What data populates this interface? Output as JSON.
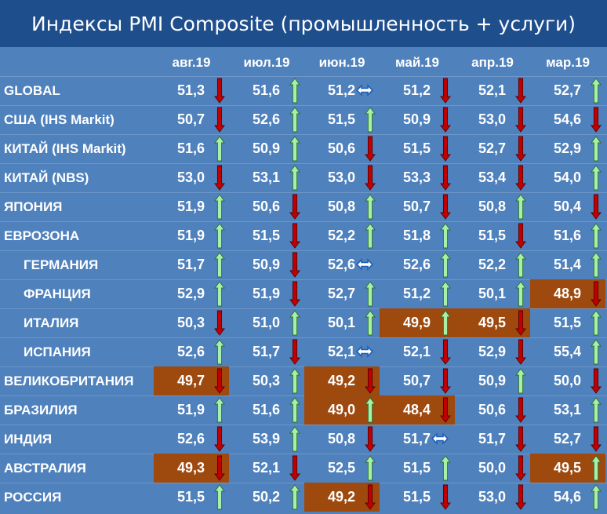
{
  "chart_data": {
    "type": "table",
    "title": "Индексы PMI Composite (промышленность + услуги)",
    "columns": [
      "авг.19",
      "июл.19",
      "июн.19",
      "май.19",
      "апр.19",
      "мар.19"
    ],
    "rows": [
      {
        "label": "GLOBAL",
        "indent": false,
        "values": [
          "51,3",
          "51,6",
          "51,2",
          "51,2",
          "52,1",
          "52,7"
        ],
        "arrows": [
          "down",
          "up",
          "flat",
          "down",
          "down",
          "up"
        ],
        "highlight": [
          false,
          false,
          false,
          false,
          false,
          false
        ]
      },
      {
        "label": "США (IHS Markit)",
        "indent": false,
        "values": [
          "50,7",
          "52,6",
          "51,5",
          "50,9",
          "53,0",
          "54,6"
        ],
        "arrows": [
          "down",
          "up",
          "up",
          "down",
          "down",
          "down"
        ],
        "highlight": [
          false,
          false,
          false,
          false,
          false,
          false
        ]
      },
      {
        "label": "КИТАЙ (IHS Markit)",
        "indent": false,
        "values": [
          "51,6",
          "50,9",
          "50,6",
          "51,5",
          "52,7",
          "52,9"
        ],
        "arrows": [
          "up",
          "up",
          "down",
          "down",
          "down",
          "up"
        ],
        "highlight": [
          false,
          false,
          false,
          false,
          false,
          false
        ]
      },
      {
        "label": "КИТАЙ (NBS)",
        "indent": false,
        "values": [
          "53,0",
          "53,1",
          "53,0",
          "53,3",
          "53,4",
          "54,0"
        ],
        "arrows": [
          "down",
          "up",
          "down",
          "down",
          "down",
          "up"
        ],
        "highlight": [
          false,
          false,
          false,
          false,
          false,
          false
        ]
      },
      {
        "label": "ЯПОНИЯ",
        "indent": false,
        "values": [
          "51,9",
          "50,6",
          "50,8",
          "50,7",
          "50,8",
          "50,4"
        ],
        "arrows": [
          "up",
          "down",
          "up",
          "down",
          "up",
          "down"
        ],
        "highlight": [
          false,
          false,
          false,
          false,
          false,
          false
        ]
      },
      {
        "label": "ЕВРОЗОНА",
        "indent": false,
        "values": [
          "51,9",
          "51,5",
          "52,2",
          "51,8",
          "51,5",
          "51,6"
        ],
        "arrows": [
          "up",
          "down",
          "up",
          "up",
          "down",
          "up"
        ],
        "highlight": [
          false,
          false,
          false,
          false,
          false,
          false
        ]
      },
      {
        "label": "ГЕРМАНИЯ",
        "indent": true,
        "values": [
          "51,7",
          "50,9",
          "52,6",
          "52,6",
          "52,2",
          "51,4"
        ],
        "arrows": [
          "up",
          "down",
          "flat",
          "up",
          "up",
          "up"
        ],
        "highlight": [
          false,
          false,
          false,
          false,
          false,
          false
        ]
      },
      {
        "label": "ФРАНЦИЯ",
        "indent": true,
        "values": [
          "52,9",
          "51,9",
          "52,7",
          "51,2",
          "50,1",
          "48,9"
        ],
        "arrows": [
          "up",
          "down",
          "up",
          "up",
          "up",
          "down"
        ],
        "highlight": [
          false,
          false,
          false,
          false,
          false,
          true
        ]
      },
      {
        "label": "ИТАЛИЯ",
        "indent": true,
        "values": [
          "50,3",
          "51,0",
          "50,1",
          "49,9",
          "49,5",
          "51,5"
        ],
        "arrows": [
          "down",
          "up",
          "up",
          "up",
          "down",
          "up"
        ],
        "highlight": [
          false,
          false,
          false,
          true,
          true,
          false
        ]
      },
      {
        "label": "ИСПАНИЯ",
        "indent": true,
        "values": [
          "52,6",
          "51,7",
          "52,1",
          "52,1",
          "52,9",
          "55,4"
        ],
        "arrows": [
          "up",
          "down",
          "flat",
          "down",
          "down",
          "up"
        ],
        "highlight": [
          false,
          false,
          false,
          false,
          false,
          false
        ]
      },
      {
        "label": "ВЕЛИКОБРИТАНИЯ",
        "indent": false,
        "values": [
          "49,7",
          "50,3",
          "49,2",
          "50,7",
          "50,9",
          "50,0"
        ],
        "arrows": [
          "down",
          "up",
          "down",
          "down",
          "up",
          "down"
        ],
        "highlight": [
          true,
          false,
          true,
          false,
          false,
          false
        ]
      },
      {
        "label": "БРАЗИЛИЯ",
        "indent": false,
        "values": [
          "51,9",
          "51,6",
          "49,0",
          "48,4",
          "50,6",
          "53,1"
        ],
        "arrows": [
          "up",
          "up",
          "up",
          "down",
          "down",
          "up"
        ],
        "highlight": [
          false,
          false,
          true,
          true,
          false,
          false
        ]
      },
      {
        "label": "ИНДИЯ",
        "indent": false,
        "values": [
          "52,6",
          "53,9",
          "50,8",
          "51,7",
          "51,7",
          "52,7"
        ],
        "arrows": [
          "down",
          "up",
          "down",
          "flat",
          "down",
          "down"
        ],
        "highlight": [
          false,
          false,
          false,
          false,
          false,
          false
        ]
      },
      {
        "label": "АВСТРАЛИЯ",
        "indent": false,
        "values": [
          "49,3",
          "52,1",
          "52,5",
          "51,5",
          "50,0",
          "49,5"
        ],
        "arrows": [
          "down",
          "down",
          "up",
          "up",
          "down",
          "up"
        ],
        "highlight": [
          true,
          false,
          false,
          false,
          false,
          true
        ]
      },
      {
        "label": "РОССИЯ",
        "indent": false,
        "values": [
          "51,5",
          "50,2",
          "49,2",
          "51,5",
          "53,0",
          "54,6"
        ],
        "arrows": [
          "up",
          "up",
          "down",
          "down",
          "down",
          "up"
        ],
        "highlight": [
          false,
          false,
          true,
          false,
          false,
          false
        ]
      }
    ]
  },
  "colors": {
    "background": "#4f81bd",
    "title_bar": "#1f4e8c",
    "highlight": "#9e4a0e",
    "arrow_up": "#a8f0a8",
    "arrow_down": "#c00000",
    "arrow_flat": "#1f5fb8"
  }
}
